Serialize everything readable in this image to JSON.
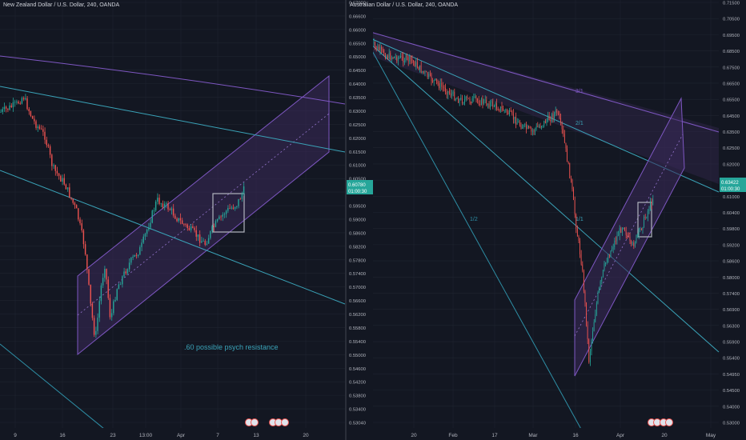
{
  "colors": {
    "background": "#131722",
    "grid": "#1f2430",
    "candle_up": "#26a69a",
    "candle_down": "#ef5350",
    "channel_fill": "#3b2a5a",
    "channel_line": "#7e57c2",
    "trend_line": "#3aa3b8",
    "fan_line": "#2e8fa6",
    "text": "#d1d4dc",
    "axis_text": "#b2b5be"
  },
  "left_chart": {
    "title": "New Zealand Dollar / U.S. Dollar, 240, OANDA",
    "price_axis": [
      "0.67000",
      "0.66600",
      "0.66000",
      "0.65500",
      "0.65000",
      "0.64500",
      "0.64000",
      "0.63500",
      "0.63000",
      "0.62500",
      "0.62000",
      "0.61500",
      "0.61000",
      "0.60500",
      "0.60000",
      "0.59500",
      "0.59000",
      "0.58600",
      "0.58200",
      "0.57800",
      "0.57400",
      "0.57000",
      "0.56600",
      "0.56200",
      "0.55800",
      "0.55400",
      "0.55000",
      "0.54600",
      "0.54200",
      "0.53800",
      "0.53400",
      "0.53040"
    ],
    "time_axis": [
      "9",
      "16",
      "23",
      "13:00",
      "Apr",
      "7",
      "13",
      "20"
    ],
    "last_price": "0.60780",
    "countdown": "01:00:30",
    "annotation": ".60 possible psych resistance"
  },
  "right_chart": {
    "title": "Australian Dollar / U.S. Dollar, 240, OANDA",
    "price_axis": [
      "0.71500",
      "0.70500",
      "0.69500",
      "0.68500",
      "0.67500",
      "0.66500",
      "0.65500",
      "0.64500",
      "0.63500",
      "0.62500",
      "0.62000",
      "0.61500",
      "0.61000",
      "0.60400",
      "0.59800",
      "0.59200",
      "0.58600",
      "0.58000",
      "0.57400",
      "0.56900",
      "0.56300",
      "0.55900",
      "0.55400",
      "0.54950",
      "0.54500",
      "0.54000",
      "0.53000"
    ],
    "time_axis": [
      "20",
      "Feb",
      "17",
      "Mar",
      "16",
      "Apr",
      "20",
      "May"
    ],
    "last_price": "0.63422",
    "countdown": "01:00:30",
    "fan_labels": [
      "1/2",
      "1/1",
      "2/1",
      "3/1"
    ]
  }
}
